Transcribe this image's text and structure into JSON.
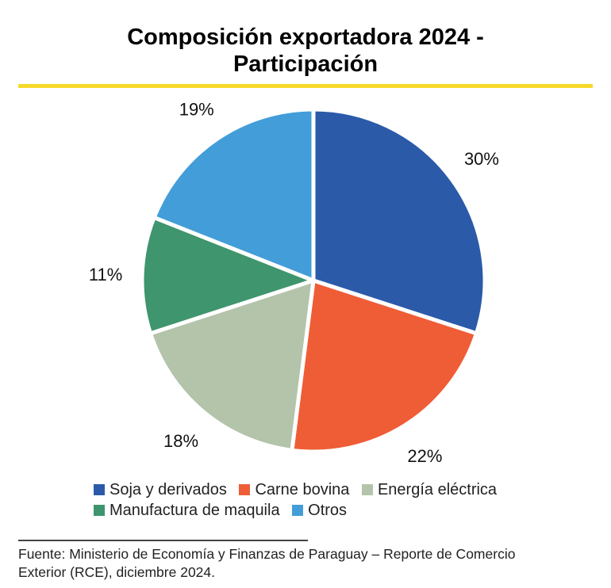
{
  "chart_data": {
    "type": "pie",
    "title_line1": "Composición exportadora 2024 -",
    "title_line2": "Participación",
    "start": "top",
    "direction": "clockwise",
    "slices": [
      {
        "label": "Soja y derivados",
        "value": 30,
        "display": "30%",
        "color": "#2b5aa9"
      },
      {
        "label": "Carne bovina",
        "value": 22,
        "display": "22%",
        "color": "#ef5d37"
      },
      {
        "label": "Energía eléctrica",
        "value": 18,
        "display": "18%",
        "color": "#b4c4aa"
      },
      {
        "label": "Manufactura de maquila",
        "value": 11,
        "display": "11%",
        "color": "#3f956d"
      },
      {
        "label": "Otros",
        "value": 19,
        "display": "19%",
        "color": "#439dd8"
      }
    ],
    "legend_position": "bottom"
  },
  "accent_color": "#f7d92b",
  "source": {
    "line1": "Fuente: Ministerio de Economía y Finanzas de Paraguay – Reporte de Comercio",
    "line2": "Exterior (RCE), diciembre 2024."
  }
}
